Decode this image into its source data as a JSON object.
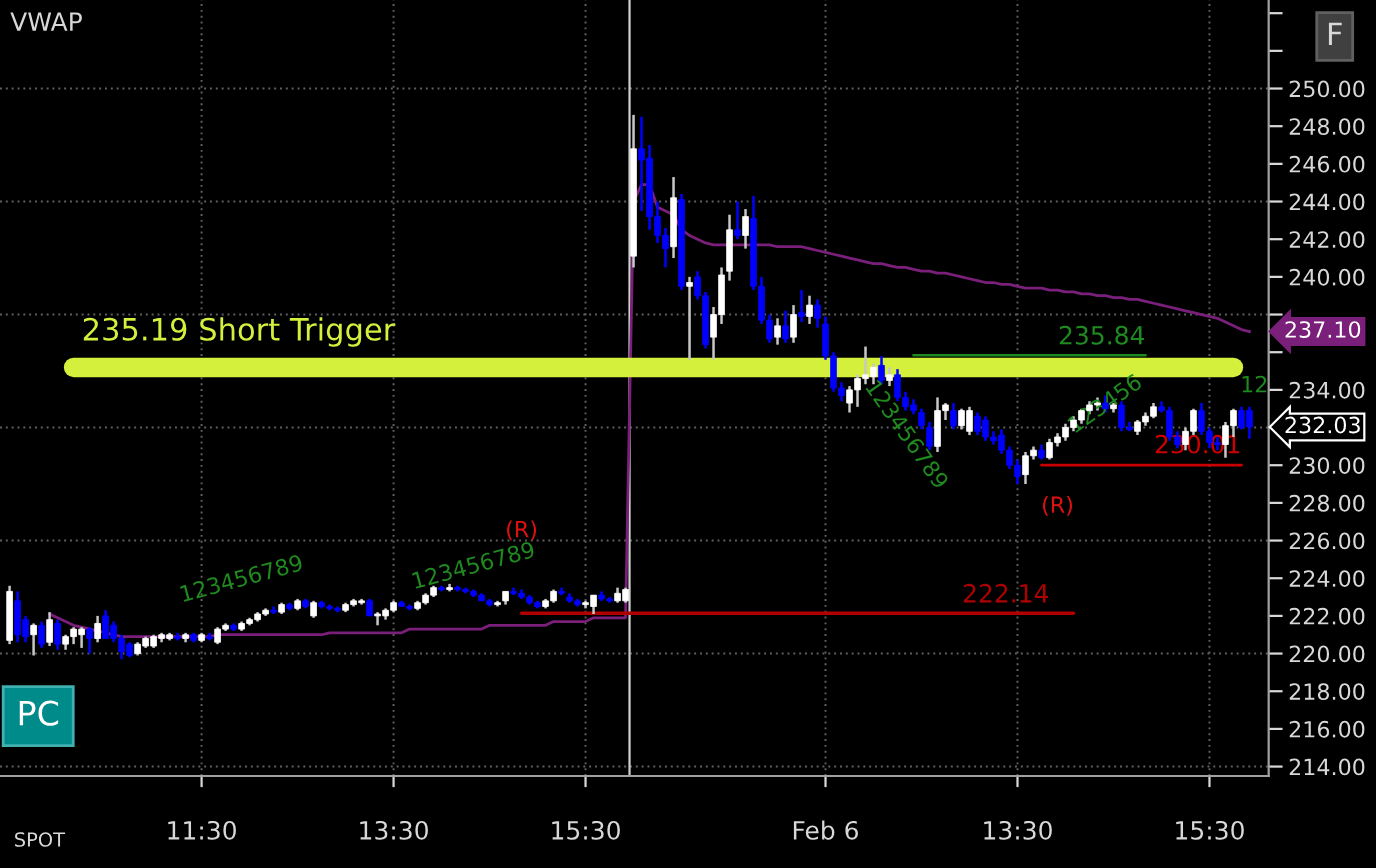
{
  "chart_data": {
    "type": "candlestick",
    "title": "VWAP",
    "categories": [
      null,
      null,
      null,
      null,
      null,
      null,
      null,
      null,
      null,
      null,
      null,
      null,
      null,
      null,
      null,
      null,
      null,
      null,
      null,
      null,
      null,
      null,
      null,
      null,
      "11:30",
      null,
      null,
      null,
      null,
      null,
      null,
      null,
      null,
      null,
      null,
      null,
      null,
      null,
      null,
      null,
      null,
      null,
      null,
      null,
      null,
      null,
      null,
      null,
      "13:30",
      null,
      null,
      null,
      null,
      null,
      null,
      null,
      null,
      null,
      null,
      null,
      null,
      null,
      null,
      null,
      null,
      null,
      null,
      null,
      null,
      null,
      null,
      null,
      "15:30",
      null,
      null,
      null,
      null,
      null,
      null,
      null,
      null,
      null,
      null,
      null,
      null,
      null,
      null,
      null,
      null,
      null,
      null,
      null,
      null,
      null,
      null,
      null,
      null,
      null,
      null,
      null,
      null,
      null,
      "Feb 6",
      null,
      null,
      null,
      null,
      null,
      null,
      null,
      null,
      null,
      null,
      null,
      null,
      null,
      null,
      null,
      null,
      null,
      null,
      null,
      null,
      null,
      null,
      null,
      "13:30",
      null,
      null,
      null,
      null,
      null,
      null,
      null,
      null,
      null,
      null,
      null,
      null,
      null,
      null,
      null,
      null,
      null,
      null,
      null,
      null,
      null,
      null,
      null,
      "15:30",
      null,
      null,
      null,
      null,
      null
    ],
    "colors": [
      "#ffffff",
      "#0000ff",
      "#0000ff",
      "#ffffff",
      "#0000ff",
      "#ffffff",
      "#0000ff",
      "#ffffff",
      "#ffffff",
      "#ffffff",
      "#0000ff",
      "#ffffff",
      "#0000ff",
      "#0000ff",
      "#0000ff",
      "#0000ff",
      "#ffffff",
      "#ffffff",
      "#ffffff",
      "#ffffff",
      "#ffffff",
      "#0000ff",
      "#ffffff",
      "#0000ff",
      "#ffffff",
      "#0000ff",
      "#ffffff",
      "#ffffff",
      "#0000ff",
      "#ffffff",
      "#ffffff",
      "#ffffff",
      "#ffffff",
      "#0000ff",
      "#ffffff",
      "#0000ff",
      "#ffffff",
      "#0000ff",
      "#ffffff",
      "#0000ff",
      "#0000ff",
      "#0000ff",
      "#ffffff",
      "#ffffff",
      "#ffffff",
      "#0000ff",
      "#ffffff",
      "#ffffff",
      "#ffffff",
      "#0000ff",
      "#0000ff",
      "#ffffff",
      "#ffffff",
      "#ffffff",
      "#0000ff",
      "#ffffff",
      "#0000ff",
      "#0000ff",
      "#0000ff",
      "#0000ff",
      "#0000ff",
      "#ffffff",
      "#ffffff",
      "#0000ff",
      "#0000ff",
      "#0000ff",
      "#0000ff",
      "#ffffff",
      "#ffffff",
      "#0000ff",
      "#0000ff",
      "#0000ff",
      "#ffffff",
      "#ffffff",
      "#0000ff",
      "#0000ff",
      "#ffffff",
      "#ffffff",
      "#ffffff",
      "#0000ff",
      "#0000ff",
      "#0000ff",
      "#0000ff",
      "#ffffff",
      "#0000ff",
      "#ffffff",
      "#0000ff",
      "#0000ff",
      "#ffffff",
      "#ffffff",
      "#ffffff",
      "#0000ff",
      "#ffffff",
      "#0000ff",
      "#0000ff",
      "#0000ff",
      "#ffffff",
      "#0000ff",
      "#ffffff",
      "#0000ff",
      "#ffffff",
      "#0000ff",
      "#0000ff",
      "#0000ff",
      "#0000ff",
      "#ffffff",
      "#ffffff",
      "#ffffff",
      "#ffffff",
      "#0000ff",
      "#ffffff",
      "#0000ff",
      "#0000ff",
      "#0000ff",
      "#0000ff",
      "#0000ff",
      "#ffffff",
      "#ffffff",
      "#0000ff",
      "#ffffff",
      "#ffffff",
      "#0000ff",
      "#0000ff",
      "#0000ff",
      "#0000ff",
      "#0000ff",
      "#0000ff",
      "#ffffff",
      "#ffffff",
      "#0000ff",
      "#ffffff",
      "#ffffff",
      "#ffffff",
      "#ffffff",
      "#ffffff",
      "#ffffff",
      "#ffffff",
      "#0000ff",
      "#ffffff",
      "#0000ff",
      "#0000ff",
      "#ffffff",
      "#ffffff",
      "#ffffff",
      "#0000ff",
      "#0000ff",
      "#0000ff",
      "#ffffff",
      "#ffffff",
      "#0000ff",
      "#0000ff",
      "#0000ff",
      "#ffffff",
      "#ffffff",
      "#0000ff",
      "#0000ff"
    ],
    "ohlc": [
      [
        220.7,
        223.6,
        220.5,
        223.3
      ],
      [
        222.8,
        223.3,
        220.6,
        221.0
      ],
      [
        221.8,
        222.0,
        220.6,
        220.9
      ],
      [
        221.0,
        221.6,
        219.9,
        221.5
      ],
      [
        221.5,
        221.7,
        220.3,
        220.5
      ],
      [
        220.6,
        222.2,
        220.4,
        221.8
      ],
      [
        221.6,
        221.8,
        220.2,
        220.5
      ],
      [
        220.5,
        221.0,
        220.2,
        220.9
      ],
      [
        220.9,
        221.4,
        220.5,
        221.3
      ],
      [
        221.0,
        221.4,
        220.3,
        221.3
      ],
      [
        221.3,
        221.4,
        220.0,
        220.8
      ],
      [
        220.8,
        222.0,
        220.6,
        221.6
      ],
      [
        222.0,
        222.3,
        220.8,
        220.8
      ],
      [
        221.5,
        221.7,
        220.6,
        220.8
      ],
      [
        220.8,
        221.0,
        219.7,
        220.1
      ],
      [
        220.5,
        220.6,
        219.8,
        219.9
      ],
      [
        220.0,
        220.6,
        219.9,
        220.5
      ],
      [
        220.4,
        220.9,
        220.3,
        220.8
      ],
      [
        220.4,
        221.0,
        220.3,
        220.9
      ],
      [
        220.8,
        221.1,
        220.6,
        221.0
      ],
      [
        220.8,
        221.1,
        220.7,
        221.0
      ],
      [
        220.9,
        221.1,
        220.7,
        220.8
      ],
      [
        220.8,
        221.1,
        220.6,
        221.0
      ],
      [
        221.0,
        221.1,
        220.6,
        220.7
      ],
      [
        220.7,
        221.1,
        220.6,
        221.0
      ],
      [
        220.9,
        221.1,
        220.7,
        220.8
      ],
      [
        220.6,
        221.4,
        220.5,
        221.3
      ],
      [
        221.3,
        221.6,
        221.2,
        221.5
      ],
      [
        221.5,
        221.6,
        221.2,
        221.3
      ],
      [
        221.3,
        221.7,
        221.2,
        221.6
      ],
      [
        221.6,
        221.9,
        221.5,
        221.8
      ],
      [
        221.8,
        222.2,
        221.7,
        222.1
      ],
      [
        222.1,
        222.4,
        222.0,
        222.3
      ],
      [
        222.3,
        222.5,
        222.1,
        222.2
      ],
      [
        222.2,
        222.7,
        222.1,
        222.6
      ],
      [
        222.6,
        222.7,
        222.3,
        222.4
      ],
      [
        222.4,
        222.9,
        222.3,
        222.8
      ],
      [
        222.8,
        222.9,
        222.4,
        222.5
      ],
      [
        222.0,
        222.8,
        221.9,
        222.7
      ],
      [
        222.7,
        222.8,
        222.4,
        222.5
      ],
      [
        222.5,
        222.6,
        222.3,
        222.4
      ],
      [
        222.4,
        222.5,
        222.2,
        222.3
      ],
      [
        222.3,
        222.7,
        222.2,
        222.6
      ],
      [
        222.6,
        222.9,
        222.5,
        222.8
      ],
      [
        222.7,
        222.9,
        222.6,
        222.8
      ],
      [
        222.8,
        222.9,
        222.0,
        222.0
      ],
      [
        222.0,
        222.2,
        221.5,
        222.1
      ],
      [
        222.0,
        222.4,
        221.8,
        222.3
      ],
      [
        222.3,
        222.8,
        222.2,
        222.7
      ],
      [
        222.7,
        222.8,
        222.5,
        222.5
      ],
      [
        222.5,
        222.6,
        222.3,
        222.4
      ],
      [
        222.4,
        222.8,
        222.3,
        222.7
      ],
      [
        222.7,
        223.2,
        222.6,
        223.1
      ],
      [
        223.1,
        223.6,
        223.0,
        223.5
      ],
      [
        223.5,
        223.6,
        223.3,
        223.4
      ],
      [
        223.4,
        223.7,
        223.3,
        223.5
      ],
      [
        223.5,
        223.6,
        223.3,
        223.4
      ],
      [
        223.4,
        223.5,
        223.2,
        223.3
      ],
      [
        223.3,
        223.4,
        223.0,
        223.1
      ],
      [
        223.1,
        223.2,
        222.8,
        222.8
      ],
      [
        222.8,
        222.9,
        222.5,
        222.6
      ],
      [
        222.6,
        222.8,
        222.5,
        222.7
      ],
      [
        222.8,
        223.3,
        222.6,
        223.3
      ],
      [
        223.3,
        223.5,
        223.1,
        223.2
      ],
      [
        223.2,
        223.4,
        222.9,
        223.0
      ],
      [
        223.0,
        223.1,
        222.6,
        222.7
      ],
      [
        222.7,
        222.8,
        222.4,
        222.5
      ],
      [
        222.5,
        222.9,
        222.4,
        222.8
      ],
      [
        222.8,
        223.4,
        222.7,
        223.3
      ],
      [
        223.3,
        223.5,
        223.1,
        223.2
      ],
      [
        223.0,
        223.2,
        222.7,
        222.8
      ],
      [
        222.8,
        222.9,
        222.5,
        222.6
      ],
      [
        222.6,
        222.8,
        222.4,
        222.7
      ],
      [
        222.5,
        223.1,
        222.1,
        223.1
      ],
      [
        223.1,
        223.3,
        222.8,
        222.9
      ],
      [
        222.9,
        223.0,
        222.7,
        222.8
      ],
      [
        222.8,
        223.5,
        222.7,
        223.2
      ],
      [
        222.8,
        223.5,
        222.7,
        223.4
      ],
      [
        241.1,
        248.6,
        240.5,
        246.8
      ],
      [
        246.8,
        248.5,
        243.5,
        246.2
      ],
      [
        246.3,
        247.0,
        242.5,
        243.2
      ],
      [
        243.2,
        244.0,
        241.8,
        242.2
      ],
      [
        242.2,
        242.6,
        240.5,
        241.5
      ],
      [
        241.6,
        245.3,
        241.0,
        244.2
      ],
      [
        244.1,
        244.4,
        239.3,
        239.5
      ],
      [
        239.5,
        240.0,
        235.6,
        239.7
      ],
      [
        240.0,
        240.3,
        238.8,
        239.0
      ],
      [
        239.0,
        239.2,
        236.2,
        236.4
      ],
      [
        236.8,
        238.4,
        235.6,
        238.0
      ],
      [
        238.0,
        240.5,
        237.5,
        240.1
      ],
      [
        240.3,
        243.3,
        239.8,
        242.5
      ],
      [
        242.5,
        244.0,
        242.0,
        242.2
      ],
      [
        242.2,
        243.6,
        241.5,
        243.2
      ],
      [
        243.1,
        244.3,
        239.3,
        239.5
      ],
      [
        239.5,
        240.0,
        237.5,
        237.7
      ],
      [
        237.7,
        238.0,
        236.5,
        236.7
      ],
      [
        236.8,
        237.8,
        236.4,
        237.4
      ],
      [
        237.4,
        238.2,
        236.5,
        236.7
      ],
      [
        236.8,
        238.5,
        236.5,
        238.0
      ],
      [
        238.1,
        239.3,
        237.6,
        237.9
      ],
      [
        237.9,
        239.0,
        237.5,
        238.5
      ],
      [
        238.5,
        238.8,
        237.3,
        237.8
      ],
      [
        237.5,
        237.9,
        235.6,
        235.8
      ],
      [
        235.8,
        236.0,
        233.9,
        234.1
      ],
      [
        234.1,
        234.4,
        233.4,
        233.7
      ],
      [
        233.3,
        234.2,
        232.8,
        234.0
      ],
      [
        234.0,
        234.8,
        233.1,
        234.6
      ],
      [
        234.6,
        236.3,
        234.3,
        234.8
      ],
      [
        234.7,
        235.4,
        234.3,
        235.2
      ],
      [
        235.3,
        235.8,
        234.3,
        234.5
      ],
      [
        234.5,
        235.2,
        234.2,
        234.8
      ],
      [
        234.8,
        235.1,
        233.4,
        233.6
      ],
      [
        233.6,
        233.9,
        232.9,
        233.1
      ],
      [
        233.2,
        233.5,
        232.7,
        232.9
      ],
      [
        232.8,
        233.0,
        231.9,
        232.1
      ],
      [
        232.0,
        232.3,
        230.8,
        231.0
      ],
      [
        231.0,
        233.6,
        230.7,
        232.9
      ],
      [
        232.9,
        233.3,
        232.4,
        233.2
      ],
      [
        232.9,
        233.3,
        231.9,
        232.1
      ],
      [
        232.1,
        233.0,
        231.9,
        232.9
      ],
      [
        231.8,
        233.1,
        231.6,
        232.9
      ],
      [
        232.6,
        232.8,
        231.6,
        231.8
      ],
      [
        232.4,
        232.6,
        231.3,
        231.5
      ],
      [
        231.5,
        231.8,
        231.1,
        231.3
      ],
      [
        231.6,
        231.9,
        230.6,
        230.8
      ],
      [
        230.8,
        231.0,
        229.8,
        230.0
      ],
      [
        230.0,
        230.3,
        229.0,
        229.4
      ],
      [
        229.5,
        230.7,
        229.0,
        230.5
      ],
      [
        230.5,
        231.0,
        230.3,
        230.8
      ],
      [
        230.8,
        231.1,
        230.3,
        230.4
      ],
      [
        230.4,
        231.4,
        230.3,
        231.2
      ],
      [
        231.2,
        231.7,
        231.0,
        231.5
      ],
      [
        231.5,
        232.2,
        231.3,
        232.0
      ],
      [
        232.0,
        232.6,
        231.8,
        232.4
      ],
      [
        232.4,
        233.0,
        232.2,
        232.9
      ],
      [
        232.9,
        233.4,
        232.7,
        233.2
      ],
      [
        233.2,
        233.6,
        232.9,
        233.3
      ],
      [
        233.3,
        233.7,
        232.8,
        233.0
      ],
      [
        233.0,
        233.3,
        232.8,
        233.2
      ],
      [
        233.2,
        233.4,
        231.8,
        232.0
      ],
      [
        232.0,
        232.3,
        231.8,
        231.9
      ],
      [
        231.8,
        232.4,
        231.6,
        232.3
      ],
      [
        232.3,
        232.8,
        232.1,
        232.6
      ],
      [
        232.6,
        233.3,
        232.5,
        233.1
      ],
      [
        233.1,
        233.4,
        232.8,
        232.9
      ],
      [
        232.9,
        233.1,
        231.3,
        231.5
      ],
      [
        231.5,
        231.8,
        230.9,
        231.1
      ],
      [
        231.1,
        232.0,
        230.8,
        231.8
      ],
      [
        231.8,
        233.0,
        231.6,
        232.9
      ],
      [
        232.9,
        233.3,
        231.6,
        231.8
      ],
      [
        231.8,
        232.0,
        230.9,
        231.2
      ],
      [
        231.2,
        231.5,
        230.8,
        231.1
      ],
      [
        231.1,
        232.3,
        230.4,
        232.1
      ],
      [
        232.1,
        233.0,
        231.5,
        232.9
      ],
      [
        232.9,
        233.1,
        231.9,
        232.0
      ],
      [
        232.9,
        233.1,
        231.4,
        232.03
      ]
    ],
    "series": [
      {
        "type": "line",
        "color": "#7a1f7a",
        "values": [
          null,
          null,
          null,
          null,
          null,
          222.1,
          221.9,
          221.7,
          221.5,
          221.4,
          221.3,
          221.2,
          221.1,
          221.0,
          220.9,
          220.9,
          220.9,
          220.9,
          220.9,
          220.9,
          220.9,
          220.9,
          220.9,
          220.9,
          220.9,
          220.9,
          221.0,
          221.0,
          221.0,
          221.0,
          221.0,
          221.0,
          221.0,
          221.0,
          221.0,
          221.0,
          221.0,
          221.0,
          221.0,
          221.0,
          221.1,
          221.1,
          221.1,
          221.1,
          221.1,
          221.1,
          221.1,
          221.1,
          221.1,
          221.1,
          221.3,
          221.3,
          221.3,
          221.3,
          221.3,
          221.3,
          221.3,
          221.3,
          221.3,
          221.3,
          221.5,
          221.5,
          221.5,
          221.5,
          221.5,
          221.5,
          221.5,
          221.5,
          221.7,
          221.7,
          221.7,
          221.7,
          221.7,
          221.9,
          221.9,
          221.9,
          221.9,
          221.9,
          244.0,
          244.9,
          244.9,
          243.7,
          243.5,
          243.3,
          242.5,
          242.2,
          242.0,
          241.8,
          241.7,
          241.7,
          241.7,
          241.7,
          241.7,
          241.7,
          241.7,
          241.7,
          241.6,
          241.6,
          241.6,
          241.6,
          241.5,
          241.4,
          241.3,
          241.2,
          241.1,
          241.0,
          240.9,
          240.8,
          240.7,
          240.7,
          240.6,
          240.5,
          240.5,
          240.4,
          240.3,
          240.3,
          240.2,
          240.2,
          240.1,
          240.0,
          239.9,
          239.8,
          239.7,
          239.7,
          239.6,
          239.6,
          239.5,
          239.4,
          239.4,
          239.4,
          239.3,
          239.3,
          239.2,
          239.2,
          239.1,
          239.1,
          239.0,
          239.0,
          238.9,
          238.9,
          238.8,
          238.8,
          238.7,
          238.6,
          238.5,
          238.4,
          238.3,
          238.2,
          238.1,
          238.0,
          237.9,
          237.8,
          237.6,
          237.4,
          237.2,
          237.1
        ]
      }
    ],
    "ylim": [
      213.5,
      254.7
    ],
    "yticks": [
      {
        "value": 214,
        "label": "214.00"
      },
      {
        "value": 216,
        "label": "216.00"
      },
      {
        "value": 218,
        "label": "218.00"
      },
      {
        "value": 220,
        "label": "220.00"
      },
      {
        "value": 222,
        "label": "222.00"
      },
      {
        "value": 224,
        "label": "224.00"
      },
      {
        "value": 226,
        "label": "226.00"
      },
      {
        "value": 228,
        "label": "228.00"
      },
      {
        "value": 230,
        "label": "230.00"
      },
      {
        "value": 232,
        "label": null
      },
      {
        "value": 234,
        "label": "234.00"
      },
      {
        "value": 236,
        "label": null
      },
      {
        "value": 238,
        "label": null
      },
      {
        "value": 240,
        "label": "240.00"
      },
      {
        "value": 242,
        "label": "242.00"
      },
      {
        "value": 244,
        "label": "244.00"
      },
      {
        "value": 246,
        "label": "246.00"
      },
      {
        "value": 248,
        "label": "248.00"
      },
      {
        "value": 250,
        "label": "250.00"
      },
      {
        "value": 252,
        "label": null
      },
      {
        "value": 254,
        "label": null
      }
    ],
    "grid": true,
    "ref_lines": [
      {
        "axis": "y",
        "value": 235.19,
        "label": "235.19 Short Trigger",
        "color": "#d4f03c"
      },
      {
        "axis": "y",
        "value": 235.84,
        "label": "235.84",
        "color": "#1f8a1f"
      },
      {
        "axis": "y",
        "value": 222.14,
        "label": "222.14",
        "color": "#b00000"
      },
      {
        "axis": "y",
        "value": 230.01,
        "label": "230.01",
        "color": "#cc0000"
      }
    ],
    "annotations": [
      "123456789",
      "(R)",
      "123456789",
      "123456789",
      "(R)",
      "123456",
      "12",
      "237.10",
      "232.03",
      "PC",
      "SPOT",
      "F"
    ]
  }
}
